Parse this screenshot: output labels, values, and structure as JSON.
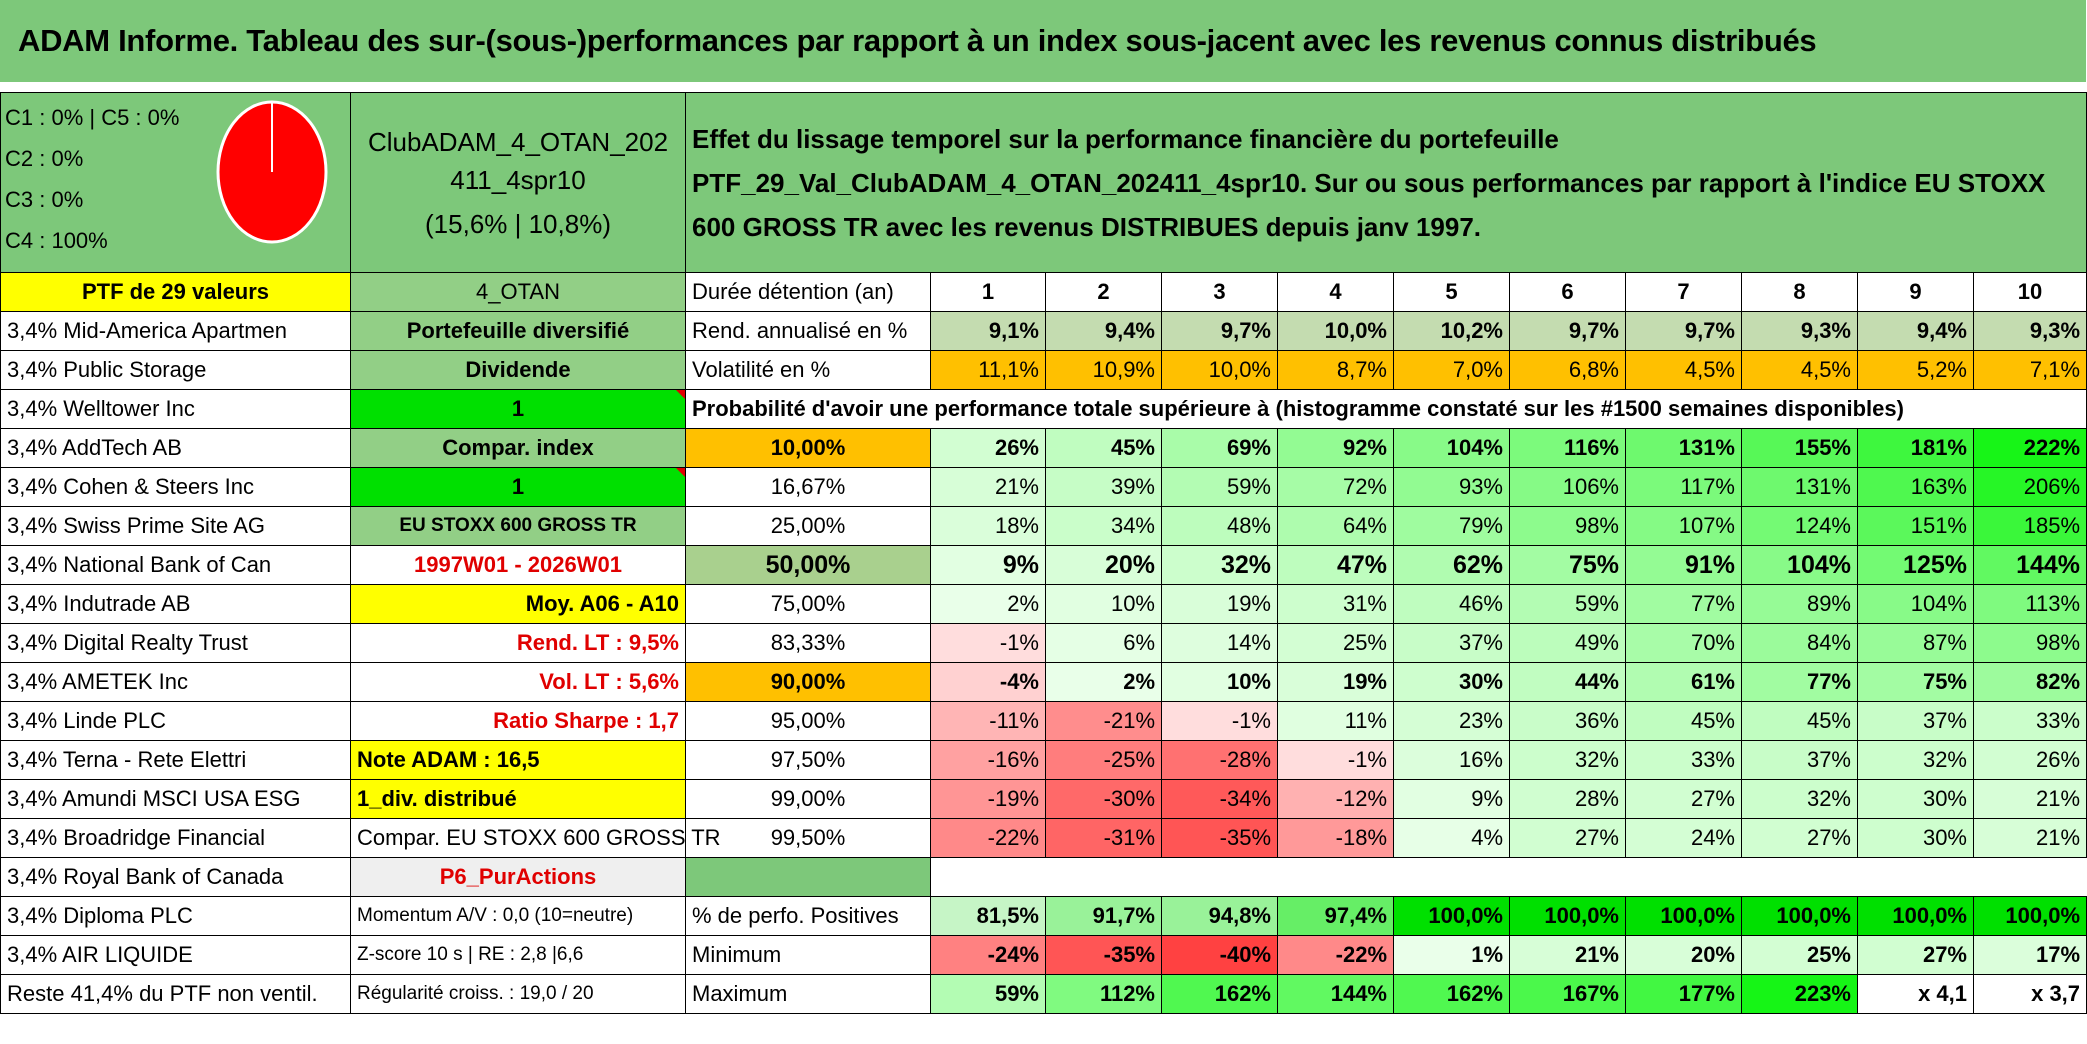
{
  "title": "ADAM Informe. Tableau des sur-(sous-)performances par rapport à un index sous-jacent avec les revenus connus distribués",
  "pie": {
    "lines": [
      "C1 : 0% | C5 : 0%",
      "C2 : 0%",
      "C3 : 0%",
      "C4 : 100%"
    ]
  },
  "fund": {
    "name": "ClubADAM_4_OTAN_202411_4spr10",
    "stats": "(15,6% | 10,8%)"
  },
  "description": "Effet du lissage temporel sur la performance financière du portefeuille PTF_29_Val_ClubADAM_4_OTAN_202411_4spr10. Sur ou sous performances par rapport à l'indice EU STOXX 600 GROSS TR avec les revenus DISTRIBUES depuis janv 1997.",
  "header": {
    "ptf": "PTF de 29 valeurs",
    "code": "4_OTAN",
    "duree": "Durée détention (an)",
    "years": [
      "1",
      "2",
      "3",
      "4",
      "5",
      "6",
      "7",
      "8",
      "9",
      "10"
    ]
  },
  "holdings": [
    "3,4% Mid-America Apartmen",
    "3,4% Public Storage",
    "3,4% Welltower Inc",
    "3,4% AddTech AB",
    "3,4% Cohen & Steers Inc",
    "3,4% Swiss Prime Site AG",
    "3,4% National Bank of Can",
    "3,4% Indutrade AB",
    "3,4% Digital Realty Trust",
    "3,4% AMETEK Inc",
    "3,4% Linde PLC",
    "3,4% Terna - Rete Elettri",
    "3,4% Amundi MSCI USA ESG",
    "3,4% Broadridge Financial",
    "3,4% Royal Bank of Canada",
    "3,4% Diploma PLC",
    "3,4% AIR LIQUIDE",
    "Reste 41,4% du PTF non ventil."
  ],
  "info": [
    "Portefeuille diversifié",
    "Dividende",
    "1",
    "Compar. index",
    "1",
    "EU STOXX 600 GROSS TR",
    "1997W01 - 2026W01",
    "Moy. A06 - A10",
    "Rend. LT : 9,5%",
    "Vol. LT : 5,6%",
    "Ratio Sharpe : 1,7",
    "Note ADAM : 16,5",
    "1_div. distribué",
    "Compar. EU STOXX 600 GROSS TR",
    "P6_PurActions",
    "Momentum A/V : 0,0 (10=neutre)",
    "Z-score 10 s | RE : 2,8 |6,6",
    "Régularité croiss. : 19,0 / 20"
  ],
  "rend": {
    "label": "Rend. annualisé en %",
    "values": [
      "9,1%",
      "9,4%",
      "9,7%",
      "10,0%",
      "10,2%",
      "9,7%",
      "9,7%",
      "9,3%",
      "9,4%",
      "9,3%"
    ]
  },
  "vol": {
    "label": "Volatilité en %",
    "values": [
      "11,1%",
      "10,9%",
      "10,0%",
      "8,7%",
      "7,0%",
      "6,8%",
      "4,5%",
      "4,5%",
      "5,2%",
      "7,1%"
    ]
  },
  "prob_title": "Probabilité d'avoir une performance totale supérieure à (histogramme constaté sur les #1500 semaines disponibles)",
  "quantiles": [
    {
      "p": "10,00%",
      "v": [
        "26%",
        "45%",
        "69%",
        "92%",
        "104%",
        "116%",
        "131%",
        "155%",
        "181%",
        "222%"
      ]
    },
    {
      "p": "16,67%",
      "v": [
        "21%",
        "39%",
        "59%",
        "72%",
        "93%",
        "106%",
        "117%",
        "131%",
        "163%",
        "206%"
      ]
    },
    {
      "p": "25,00%",
      "v": [
        "18%",
        "34%",
        "48%",
        "64%",
        "79%",
        "98%",
        "107%",
        "124%",
        "151%",
        "185%"
      ]
    },
    {
      "p": "50,00%",
      "v": [
        "9%",
        "20%",
        "32%",
        "47%",
        "62%",
        "75%",
        "91%",
        "104%",
        "125%",
        "144%"
      ]
    },
    {
      "p": "75,00%",
      "v": [
        "2%",
        "10%",
        "19%",
        "31%",
        "46%",
        "59%",
        "77%",
        "89%",
        "104%",
        "113%"
      ]
    },
    {
      "p": "83,33%",
      "v": [
        "-1%",
        "6%",
        "14%",
        "25%",
        "37%",
        "49%",
        "70%",
        "84%",
        "87%",
        "98%"
      ]
    },
    {
      "p": "90,00%",
      "v": [
        "-4%",
        "2%",
        "10%",
        "19%",
        "30%",
        "44%",
        "61%",
        "77%",
        "75%",
        "82%"
      ]
    },
    {
      "p": "95,00%",
      "v": [
        "-11%",
        "-21%",
        "-1%",
        "11%",
        "23%",
        "36%",
        "45%",
        "45%",
        "37%",
        "33%"
      ]
    },
    {
      "p": "97,50%",
      "v": [
        "-16%",
        "-25%",
        "-28%",
        "-1%",
        "16%",
        "32%",
        "33%",
        "37%",
        "32%",
        "26%"
      ]
    },
    {
      "p": "99,00%",
      "v": [
        "-19%",
        "-30%",
        "-34%",
        "-12%",
        "9%",
        "28%",
        "27%",
        "32%",
        "30%",
        "21%"
      ]
    },
    {
      "p": "99,50%",
      "v": [
        "-22%",
        "-31%",
        "-35%",
        "-18%",
        "4%",
        "27%",
        "24%",
        "27%",
        "30%",
        "21%"
      ]
    }
  ],
  "positives": {
    "label": "% de perfo. Positives",
    "values": [
      "81,5%",
      "91,7%",
      "94,8%",
      "97,4%",
      "100,0%",
      "100,0%",
      "100,0%",
      "100,0%",
      "100,0%",
      "100,0%"
    ]
  },
  "minimum": {
    "label": "Minimum",
    "values": [
      "-24%",
      "-35%",
      "-40%",
      "-22%",
      "1%",
      "21%",
      "20%",
      "25%",
      "27%",
      "17%"
    ]
  },
  "maximum": {
    "label": "Maximum",
    "values": [
      "59%",
      "112%",
      "162%",
      "144%",
      "162%",
      "167%",
      "177%",
      "223%",
      "x 4,1",
      "x 3,7"
    ]
  },
  "colors": {
    "green": "#7dc87a",
    "yellow": "#ffff00",
    "orange": "#ffc000",
    "bright_green": "#00e000",
    "red": "#e00000"
  }
}
